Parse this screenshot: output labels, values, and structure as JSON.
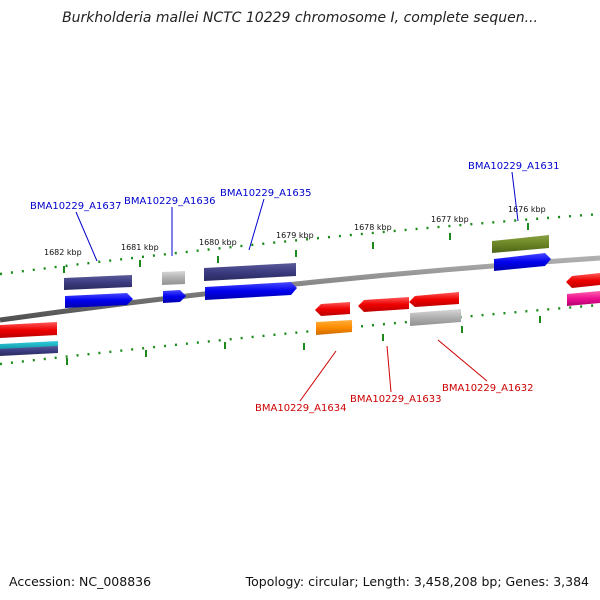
{
  "title": "Burkholderia mallei NCTC 10229 chromosome I, complete sequen...",
  "footer": {
    "accession": "Accession: NC_008836",
    "summary": "Topology: circular; Length: 3,458,208 bp; Genes: 3,384"
  },
  "ticks": [
    "1682 kbp",
    "1681 kbp",
    "1680 kbp",
    "1679 kbp",
    "1678 kbp",
    "1677 kbp",
    "1676 kbp"
  ],
  "genes_forward": [
    {
      "label": "BMA10229_A1637",
      "color": "#0000cc"
    },
    {
      "label": "BMA10229_A1636",
      "color": "#0000cc"
    },
    {
      "label": "BMA10229_A1635",
      "color": "#0000cc"
    },
    {
      "label": "BMA10229_A1631",
      "color": "#0000cc"
    }
  ],
  "genes_reverse": [
    {
      "label": "BMA10229_A1634",
      "color": "#cc0000"
    },
    {
      "label": "BMA10229_A1633",
      "color": "#cc0000"
    },
    {
      "label": "BMA10229_A1632",
      "color": "#cc0000"
    }
  ]
}
